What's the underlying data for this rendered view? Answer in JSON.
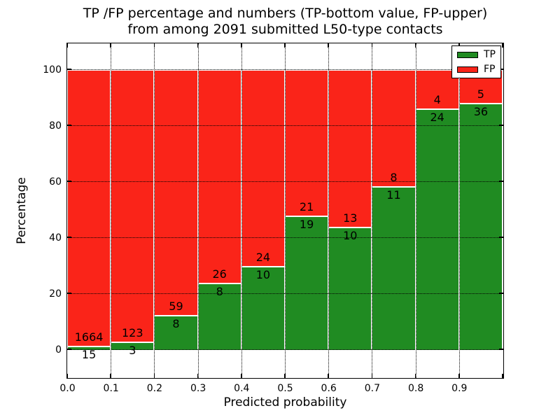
{
  "chart_data": {
    "type": "bar",
    "stacked": true,
    "title_line1": "TP /FP percentage and numbers (TP-bottom value, FP-upper)",
    "title_line2": "from among 2091 submitted L50-type contacts",
    "xlabel": "Predicted probability",
    "ylabel": "Percentage",
    "total_contacts": 2091,
    "xlim": [
      0.0,
      1.0
    ],
    "ylim": [
      -10,
      109
    ],
    "x_tick_labels": [
      "0.0",
      "0.1",
      "0.2",
      "0.3",
      "0.4",
      "0.5",
      "0.6",
      "0.7",
      "0.8",
      "0.9"
    ],
    "y_ticks": [
      0,
      20,
      40,
      60,
      80,
      100
    ],
    "grid": "dotted",
    "bin_width": 0.1,
    "legend": {
      "position": "upper right",
      "entries": [
        {
          "label": "TP",
          "color": "#208b22"
        },
        {
          "label": "FP",
          "color": "#fa2419"
        }
      ]
    },
    "series": [
      {
        "name": "TP",
        "color": "#208b22",
        "counts": [
          15,
          3,
          8,
          8,
          10,
          19,
          10,
          11,
          24,
          36
        ],
        "percent": [
          0.89,
          2.38,
          11.94,
          23.53,
          29.41,
          47.5,
          43.48,
          57.89,
          85.71,
          87.8
        ]
      },
      {
        "name": "FP",
        "color": "#fa2419",
        "counts": [
          1664,
          123,
          59,
          26,
          24,
          21,
          13,
          8,
          4,
          5
        ],
        "percent": [
          99.11,
          97.62,
          88.06,
          76.47,
          70.59,
          52.5,
          56.52,
          42.11,
          14.29,
          12.2
        ]
      }
    ]
  }
}
